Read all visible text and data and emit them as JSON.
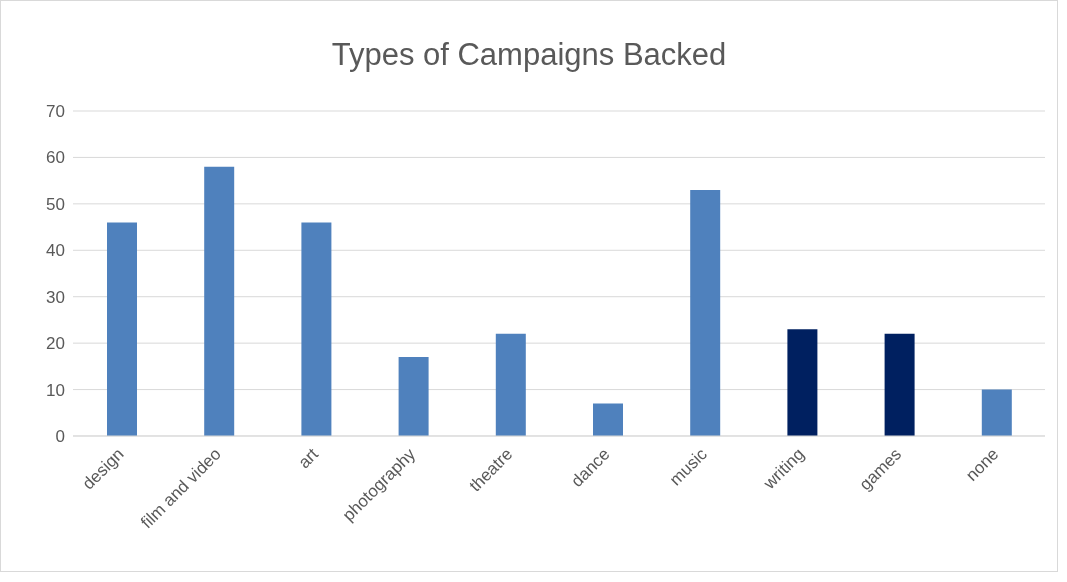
{
  "chart_data": {
    "type": "bar",
    "title": "Types of Campaigns Backed",
    "categories": [
      "design",
      "film and video",
      "art",
      "photography",
      "theatre",
      "dance",
      "music",
      "writing",
      "games",
      "none"
    ],
    "values": [
      46,
      58,
      46,
      17,
      22,
      7,
      53,
      23,
      22,
      10
    ],
    "colors": [
      "#4f81bd",
      "#4f81bd",
      "#4f81bd",
      "#4f81bd",
      "#4f81bd",
      "#4f81bd",
      "#4f81bd",
      "#002060",
      "#002060",
      "#4f81bd"
    ],
    "ylim": [
      0,
      70
    ],
    "yticks": [
      0,
      10,
      20,
      30,
      40,
      50,
      60,
      70
    ],
    "grid": "y"
  }
}
